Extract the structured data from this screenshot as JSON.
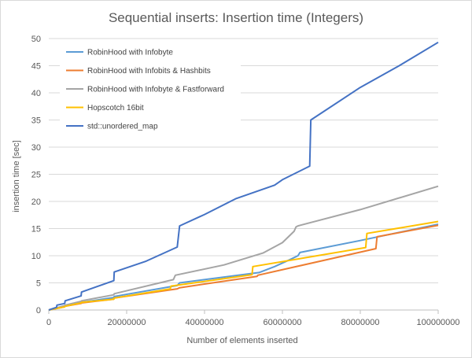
{
  "chart_data": {
    "type": "line",
    "title": "Sequential inserts: Insertion time (Integers)",
    "xlabel": "Number  of elements  inserted",
    "ylabel": "insertion time  [sec]",
    "xlim": [
      0,
      100000000
    ],
    "ylim": [
      0,
      50
    ],
    "xticks": [
      0,
      20000000,
      40000000,
      60000000,
      80000000,
      100000000
    ],
    "yticks": [
      0,
      5,
      10,
      15,
      20,
      25,
      30,
      35,
      40,
      45,
      50
    ],
    "xtick_labels": [
      "0",
      "20000000",
      "40000000",
      "60000000",
      "80000000",
      "100000000"
    ],
    "ytick_labels": [
      "0",
      "5",
      "10",
      "15",
      "20",
      "25",
      "30",
      "35",
      "40",
      "45",
      "50"
    ],
    "grid": "horizontal",
    "legend_position": "top-left",
    "series": [
      {
        "name": "RobinHood with Infobyte",
        "color": "#5b9bd5",
        "x": [
          0,
          4100000,
          4200000,
          8300000,
          8400000,
          16700000,
          16800000,
          33000000,
          33600000,
          54000000,
          58000000,
          62000000,
          64000000,
          64500000,
          80000000,
          100000000
        ],
        "y": [
          0,
          0.6,
          0.7,
          1.3,
          1.4,
          2.3,
          2.5,
          4.5,
          5.0,
          6.9,
          8.0,
          9.3,
          10.0,
          10.6,
          12.8,
          15.8
        ]
      },
      {
        "name": "RobinHood with Infobits & Hashbits",
        "color": "#ed7d31",
        "x": [
          0,
          4100000,
          4200000,
          8300000,
          8400000,
          16700000,
          16800000,
          33000000,
          33600000,
          53500000,
          53700000,
          84000000,
          84300000,
          100000000
        ],
        "y": [
          0,
          0.6,
          0.7,
          1.2,
          1.3,
          2.0,
          2.2,
          3.9,
          4.1,
          6.2,
          6.4,
          11.3,
          13.5,
          15.6
        ]
      },
      {
        "name": "RobinHood with Infobyte & Fastforward",
        "color": "#a5a5a5",
        "x": [
          0,
          4100000,
          4200000,
          8300000,
          8400000,
          16700000,
          16800000,
          32000000,
          32500000,
          45000000,
          55000000,
          60000000,
          63000000,
          63500000,
          64000000,
          80000000,
          100000000
        ],
        "y": [
          0,
          0.8,
          0.9,
          1.6,
          1.7,
          2.8,
          3.0,
          5.6,
          6.4,
          8.3,
          10.5,
          12.4,
          14.5,
          15.3,
          15.5,
          18.5,
          22.8
        ]
      },
      {
        "name": "Hopscotch 16bit",
        "color": "#ffc000",
        "x": [
          0,
          4100000,
          4200000,
          8300000,
          8400000,
          16700000,
          16800000,
          31200000,
          31400000,
          52200000,
          52400000,
          81400000,
          81700000,
          100000000
        ],
        "y": [
          0,
          0.6,
          0.7,
          1.3,
          1.4,
          2.0,
          2.2,
          3.9,
          4.4,
          6.5,
          8.0,
          11.5,
          14.1,
          16.3
        ]
      },
      {
        "name": "std::unordered_map",
        "color": "#4472c4",
        "x": [
          0,
          2000000,
          2100000,
          4100000,
          4200000,
          8300000,
          8400000,
          16700000,
          16800000,
          25000000,
          33000000,
          33600000,
          40000000,
          48000000,
          58000000,
          60000000,
          67000000,
          67300000,
          80000000,
          90000000,
          100000000
        ],
        "y": [
          0,
          0.5,
          0.9,
          1.2,
          1.7,
          2.6,
          3.3,
          5.4,
          7.0,
          9.0,
          11.6,
          15.5,
          17.6,
          20.5,
          23.0,
          24.0,
          26.5,
          35.0,
          41.0,
          45.0,
          49.3
        ]
      }
    ]
  }
}
